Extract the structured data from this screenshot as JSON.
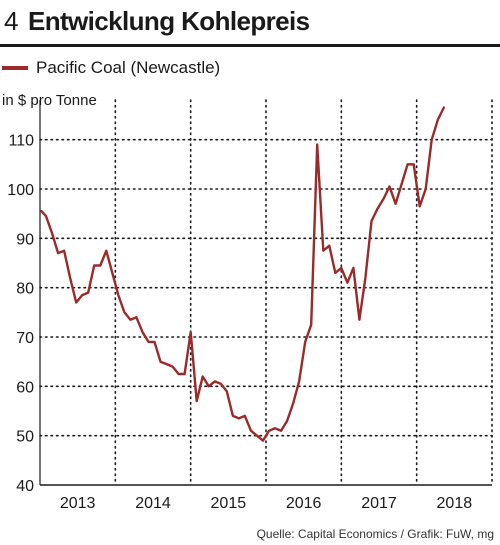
{
  "header": {
    "number": "4",
    "title": "Entwicklung Kohlepreis"
  },
  "legend": {
    "label": "Pacific Coal (Newcastle)"
  },
  "unit_label": "in $ pro Tonne",
  "source": "Quelle: Capital Economics / Grafik: FuW, mg",
  "colors": {
    "series": "#9b2b2b",
    "grid": "#1a1a1a",
    "text": "#1a1a1a"
  },
  "chart_data": {
    "type": "line",
    "ylim": [
      40,
      115
    ],
    "yticks": [
      40,
      50,
      60,
      70,
      80,
      90,
      100,
      110
    ],
    "xlim": [
      2012.5,
      2018.5
    ],
    "xticks": [
      {
        "label": "2013",
        "at": 2013.0
      },
      {
        "label": "2014",
        "at": 2014.0
      },
      {
        "label": "2015",
        "at": 2015.0
      },
      {
        "label": "2016",
        "at": 2016.0
      },
      {
        "label": "2017",
        "at": 2017.0
      },
      {
        "label": "2018",
        "at": 2018.0
      }
    ],
    "grid": "dotted, vertical at year boundaries and horizontal at y ticks",
    "series": [
      {
        "name": "Pacific Coal (Newcastle)",
        "color": "#9b2b2b",
        "points": [
          [
            2012.52,
            95.5
          ],
          [
            2012.58,
            94.5
          ],
          [
            2012.66,
            91
          ],
          [
            2012.74,
            87
          ],
          [
            2012.82,
            87.5
          ],
          [
            2012.9,
            82
          ],
          [
            2012.98,
            77
          ],
          [
            2013.06,
            78.5
          ],
          [
            2013.14,
            79
          ],
          [
            2013.22,
            84.5
          ],
          [
            2013.3,
            84.5
          ],
          [
            2013.38,
            87.5
          ],
          [
            2013.46,
            83
          ],
          [
            2013.54,
            78.5
          ],
          [
            2013.62,
            75
          ],
          [
            2013.7,
            73.5
          ],
          [
            2013.78,
            74
          ],
          [
            2013.86,
            71
          ],
          [
            2013.94,
            69
          ],
          [
            2014.02,
            69
          ],
          [
            2014.1,
            65
          ],
          [
            2014.18,
            64.5
          ],
          [
            2014.26,
            64
          ],
          [
            2014.34,
            62.5
          ],
          [
            2014.42,
            62.5
          ],
          [
            2014.5,
            71
          ],
          [
            2014.58,
            57
          ],
          [
            2014.66,
            62
          ],
          [
            2014.74,
            60
          ],
          [
            2014.82,
            61
          ],
          [
            2014.9,
            60.5
          ],
          [
            2014.98,
            59
          ],
          [
            2015.06,
            54
          ],
          [
            2015.14,
            53.5
          ],
          [
            2015.22,
            54
          ],
          [
            2015.3,
            51
          ],
          [
            2015.38,
            50
          ],
          [
            2015.46,
            49
          ],
          [
            2015.54,
            51
          ],
          [
            2015.62,
            51.5
          ],
          [
            2015.7,
            51
          ],
          [
            2015.78,
            53
          ],
          [
            2015.86,
            56.5
          ],
          [
            2015.94,
            61
          ],
          [
            2016.02,
            69
          ],
          [
            2016.1,
            72.5
          ],
          [
            2016.18,
            109
          ],
          [
            2016.26,
            87.5
          ],
          [
            2016.34,
            88.5
          ],
          [
            2016.42,
            83
          ],
          [
            2016.5,
            84
          ],
          [
            2016.58,
            81
          ],
          [
            2016.66,
            84
          ],
          [
            2016.74,
            73.5
          ],
          [
            2016.82,
            82
          ],
          [
            2016.9,
            93.5
          ],
          [
            2016.98,
            96
          ],
          [
            2017.06,
            98
          ],
          [
            2017.14,
            100.5
          ],
          [
            2017.22,
            97
          ],
          [
            2017.3,
            101
          ],
          [
            2017.38,
            105
          ],
          [
            2017.46,
            105
          ],
          [
            2017.54,
            96.5
          ],
          [
            2017.62,
            100
          ],
          [
            2017.7,
            110
          ],
          [
            2017.78,
            114
          ],
          [
            2017.86,
            116.5
          ]
        ]
      }
    ]
  }
}
